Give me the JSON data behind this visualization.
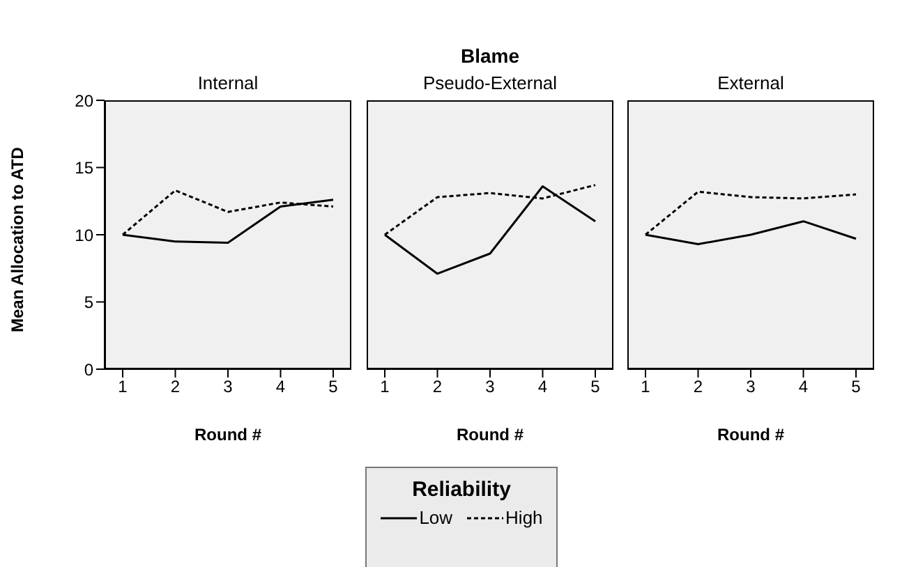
{
  "chart_data": [
    {
      "type": "line",
      "subtitle": "Internal",
      "xlabel": "Round #",
      "ylabel": "Mean Allocation to ATD",
      "categories": [
        "1",
        "2",
        "3",
        "4",
        "5"
      ],
      "ylim": [
        0,
        20
      ],
      "yticks": [
        0,
        5,
        10,
        15,
        20
      ],
      "grid": false,
      "legend": false,
      "marker": "none",
      "series": [
        {
          "color": "#000000",
          "line_style": "solid",
          "values": [
            10,
            9.5,
            9.4,
            12.1,
            12.6
          ]
        },
        {
          "color": "#000000",
          "line_style": "dashed",
          "values": [
            10,
            13.3,
            11.7,
            12.4,
            12.1
          ]
        }
      ]
    },
    {
      "type": "line",
      "title": "Blame",
      "subtitle": "Pseudo-External",
      "xlabel": "Round #",
      "categories": [
        "1",
        "2",
        "3",
        "4",
        "5"
      ],
      "ylim": [
        0,
        20
      ],
      "yticks": [
        0,
        5,
        10,
        15,
        20
      ],
      "tick_labels": "x",
      "grid": false,
      "legend": "bottom",
      "legend_title": "Reliability",
      "marker": "none",
      "series": [
        {
          "name": "Low",
          "color": "#000000",
          "line_style": "solid",
          "values": [
            10,
            7.1,
            8.6,
            13.6,
            11.0
          ]
        },
        {
          "name": "High",
          "color": "#000000",
          "line_style": "dashed",
          "values": [
            10,
            12.8,
            13.1,
            12.7,
            13.7
          ]
        }
      ]
    },
    {
      "type": "line",
      "subtitle": "External",
      "xlabel": "Round #",
      "categories": [
        "1",
        "2",
        "3",
        "4",
        "5"
      ],
      "ylim": [
        0,
        20
      ],
      "yticks": [
        0,
        5,
        10,
        15,
        20
      ],
      "tick_labels": "x",
      "grid": false,
      "legend": false,
      "marker": "none",
      "series": [
        {
          "color": "#000000",
          "line_style": "solid",
          "values": [
            10,
            9.3,
            10.0,
            11.0,
            9.7
          ]
        },
        {
          "color": "#000000",
          "line_style": "dashed",
          "values": [
            10,
            13.2,
            12.8,
            12.7,
            13.0
          ]
        }
      ]
    }
  ]
}
